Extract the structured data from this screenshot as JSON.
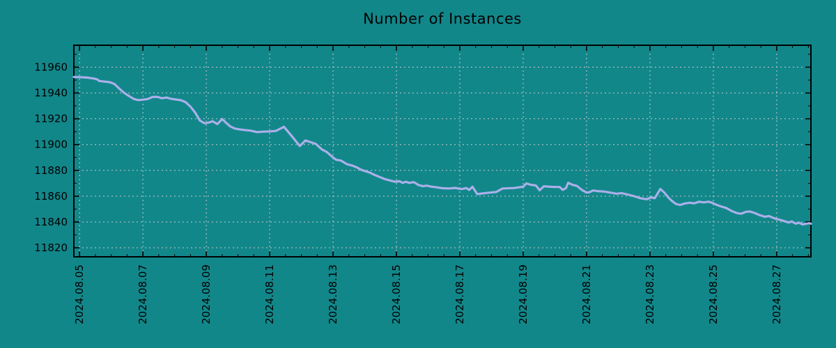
{
  "title": "Number of Instances",
  "colors": {
    "background": "#12878A",
    "line": "#AAB0E9",
    "grid": "#C9C9C9",
    "axis": "#000000",
    "text": "#000000"
  },
  "chart_data": {
    "type": "line",
    "title": "Number of Instances",
    "xlabel": "",
    "ylabel": "",
    "legend": "none",
    "grid": "dashed major gridlines, mirrored inward ticks, minor ticks x every 0.5 day, y every 10 units",
    "x_axis": {
      "tick_labels": [
        "2024.08.05",
        "2024.08.07",
        "2024.08.09",
        "2024.08.11",
        "2024.08.13",
        "2024.08.15",
        "2024.08.17",
        "2024.08.19",
        "2024.08.21",
        "2024.08.23",
        "2024.08.25",
        "2024.08.27"
      ],
      "tick_days": [
        0,
        2,
        4,
        6,
        8,
        10,
        12,
        14,
        16,
        18,
        20,
        22
      ],
      "minor_step_days": 0.5,
      "range_days": [
        -0.18,
        23.08
      ],
      "label_rotation_deg": 90
    },
    "y_axis": {
      "ticks": [
        11820,
        11840,
        11860,
        11880,
        11900,
        11920,
        11940,
        11960
      ],
      "minor_step": 10,
      "range": [
        11813,
        11977
      ]
    },
    "series": [
      {
        "name": "instances",
        "x": [
          -0.18,
          0,
          0.25,
          0.45,
          0.55,
          0.62,
          0.8,
          0.95,
          1.1,
          1.25,
          1.4,
          1.55,
          1.7,
          1.85,
          2.0,
          2.15,
          2.3,
          2.45,
          2.6,
          2.75,
          2.9,
          3.05,
          3.2,
          3.35,
          3.5,
          3.65,
          3.8,
          3.95,
          4.1,
          4.2,
          4.35,
          4.5,
          4.6,
          4.75,
          4.9,
          5.05,
          5.2,
          5.4,
          5.6,
          5.8,
          6.0,
          6.2,
          6.45,
          6.7,
          6.95,
          7.13,
          7.3,
          7.45,
          7.65,
          7.8,
          8.0,
          8.1,
          8.25,
          8.45,
          8.6,
          8.75,
          8.9,
          9.15,
          9.3,
          9.5,
          9.65,
          9.8,
          9.95,
          10.1,
          10.2,
          10.3,
          10.4,
          10.55,
          10.7,
          10.85,
          10.95,
          11.1,
          11.3,
          11.45,
          11.65,
          11.85,
          12.05,
          12.2,
          12.3,
          12.4,
          12.55,
          12.7,
          12.95,
          13.15,
          13.35,
          13.7,
          14.0,
          14.1,
          14.25,
          14.4,
          14.52,
          14.65,
          14.9,
          15.15,
          15.25,
          15.35,
          15.42,
          15.55,
          15.7,
          15.85,
          16.0,
          16.1,
          16.2,
          16.35,
          16.55,
          16.8,
          16.95,
          17.1,
          17.3,
          17.5,
          17.7,
          17.9,
          18.05,
          18.15,
          18.33,
          18.45,
          18.57,
          18.68,
          18.82,
          18.95,
          19.1,
          19.25,
          19.4,
          19.55,
          19.7,
          19.85,
          19.97,
          20.1,
          20.25,
          20.4,
          20.58,
          20.75,
          20.88,
          21.02,
          21.15,
          21.3,
          21.45,
          21.62,
          21.75,
          21.9,
          22.0,
          22.12,
          22.27,
          22.38,
          22.48,
          22.6,
          22.7,
          22.82,
          22.93,
          23.03,
          23.08
        ],
        "y": [
          11952.4,
          11952.3,
          11951.9,
          11951.2,
          11950.6,
          11949.3,
          11948.8,
          11948.4,
          11947.0,
          11943.5,
          11940.2,
          11937.8,
          11935.5,
          11934.5,
          11934.8,
          11935.3,
          11936.9,
          11937.0,
          11935.9,
          11936.5,
          11935.4,
          11934.9,
          11934.4,
          11932.8,
          11929.4,
          11924.7,
          11918.6,
          11916.4,
          11917.2,
          11918.1,
          11915.9,
          11919.8,
          11917.5,
          11914.2,
          11912.4,
          11911.8,
          11911.3,
          11910.8,
          11909.7,
          11910.0,
          11910.2,
          11910.6,
          11913.8,
          11906.5,
          11898.9,
          11903.2,
          11901.8,
          11900.6,
          11896.2,
          11894.3,
          11890.0,
          11888.2,
          11887.6,
          11884.7,
          11883.8,
          11882.3,
          11880.3,
          11878.4,
          11876.6,
          11874.6,
          11873.1,
          11872.2,
          11871.2,
          11871.6,
          11870.3,
          11871.2,
          11870.3,
          11870.9,
          11868.6,
          11867.7,
          11868.2,
          11867.4,
          11866.8,
          11866.2,
          11866.0,
          11866.4,
          11865.5,
          11866.3,
          11864.9,
          11867.3,
          11861.6,
          11862.1,
          11862.8,
          11863.3,
          11866.0,
          11866.3,
          11867.3,
          11869.9,
          11868.8,
          11868.3,
          11864.6,
          11867.7,
          11867.2,
          11867.1,
          11864.9,
          11866.3,
          11870.4,
          11868.9,
          11867.9,
          11864.9,
          11862.8,
          11863.1,
          11864.4,
          11863.9,
          11863.6,
          11862.6,
          11861.9,
          11862.4,
          11861.3,
          11860.0,
          11858.4,
          11857.6,
          11859.2,
          11858.4,
          11865.6,
          11862.9,
          11859.3,
          11856.6,
          11854.0,
          11853.2,
          11854.4,
          11854.9,
          11854.5,
          11855.7,
          11855.2,
          11855.7,
          11854.8,
          11853.3,
          11852.0,
          11850.9,
          11848.5,
          11846.9,
          11846.4,
          11847.8,
          11848.2,
          11847.0,
          11845.4,
          11844.1,
          11844.6,
          11843.1,
          11842.3,
          11841.6,
          11840.4,
          11839.6,
          11840.4,
          11838.7,
          11839.5,
          11838.1,
          11838.7,
          11839.1,
          11838.7
        ]
      }
    ]
  }
}
